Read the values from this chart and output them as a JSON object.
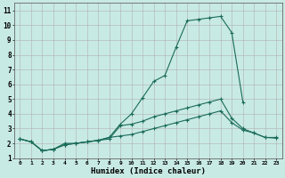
{
  "xlabel": "Humidex (Indice chaleur)",
  "bg_color": "#c8eae4",
  "grid_color": "#b0b0b0",
  "line_color": "#1a6b5a",
  "xlim": [
    -0.5,
    23.5
  ],
  "ylim": [
    1,
    11.5
  ],
  "xticks": [
    0,
    1,
    2,
    3,
    4,
    5,
    6,
    7,
    8,
    9,
    10,
    11,
    12,
    13,
    14,
    15,
    16,
    17,
    18,
    19,
    20,
    21,
    22,
    23
  ],
  "yticks": [
    1,
    2,
    3,
    4,
    5,
    6,
    7,
    8,
    9,
    10,
    11
  ],
  "line1_y": [
    2.3,
    2.1,
    1.5,
    1.6,
    1.9,
    2.0,
    2.1,
    2.2,
    2.4,
    2.5,
    2.6,
    2.8,
    3.0,
    3.2,
    3.4,
    3.6,
    3.8,
    4.0,
    4.2,
    3.4,
    2.9,
    2.7,
    2.4,
    2.35
  ],
  "line2_y": [
    2.3,
    2.1,
    1.5,
    1.6,
    1.9,
    2.0,
    2.1,
    2.2,
    2.4,
    3.3,
    4.0,
    5.1,
    6.2,
    6.6,
    8.5,
    10.3,
    10.4,
    10.5,
    10.6,
    9.5,
    4.8,
    null,
    null,
    null
  ],
  "line3_y": [
    2.3,
    2.1,
    1.5,
    1.6,
    2.0,
    2.0,
    2.1,
    2.2,
    2.3,
    3.2,
    3.3,
    3.5,
    3.8,
    4.0,
    4.2,
    4.4,
    4.6,
    4.8,
    5.0,
    3.7,
    3.0,
    2.7,
    2.4,
    2.4
  ]
}
